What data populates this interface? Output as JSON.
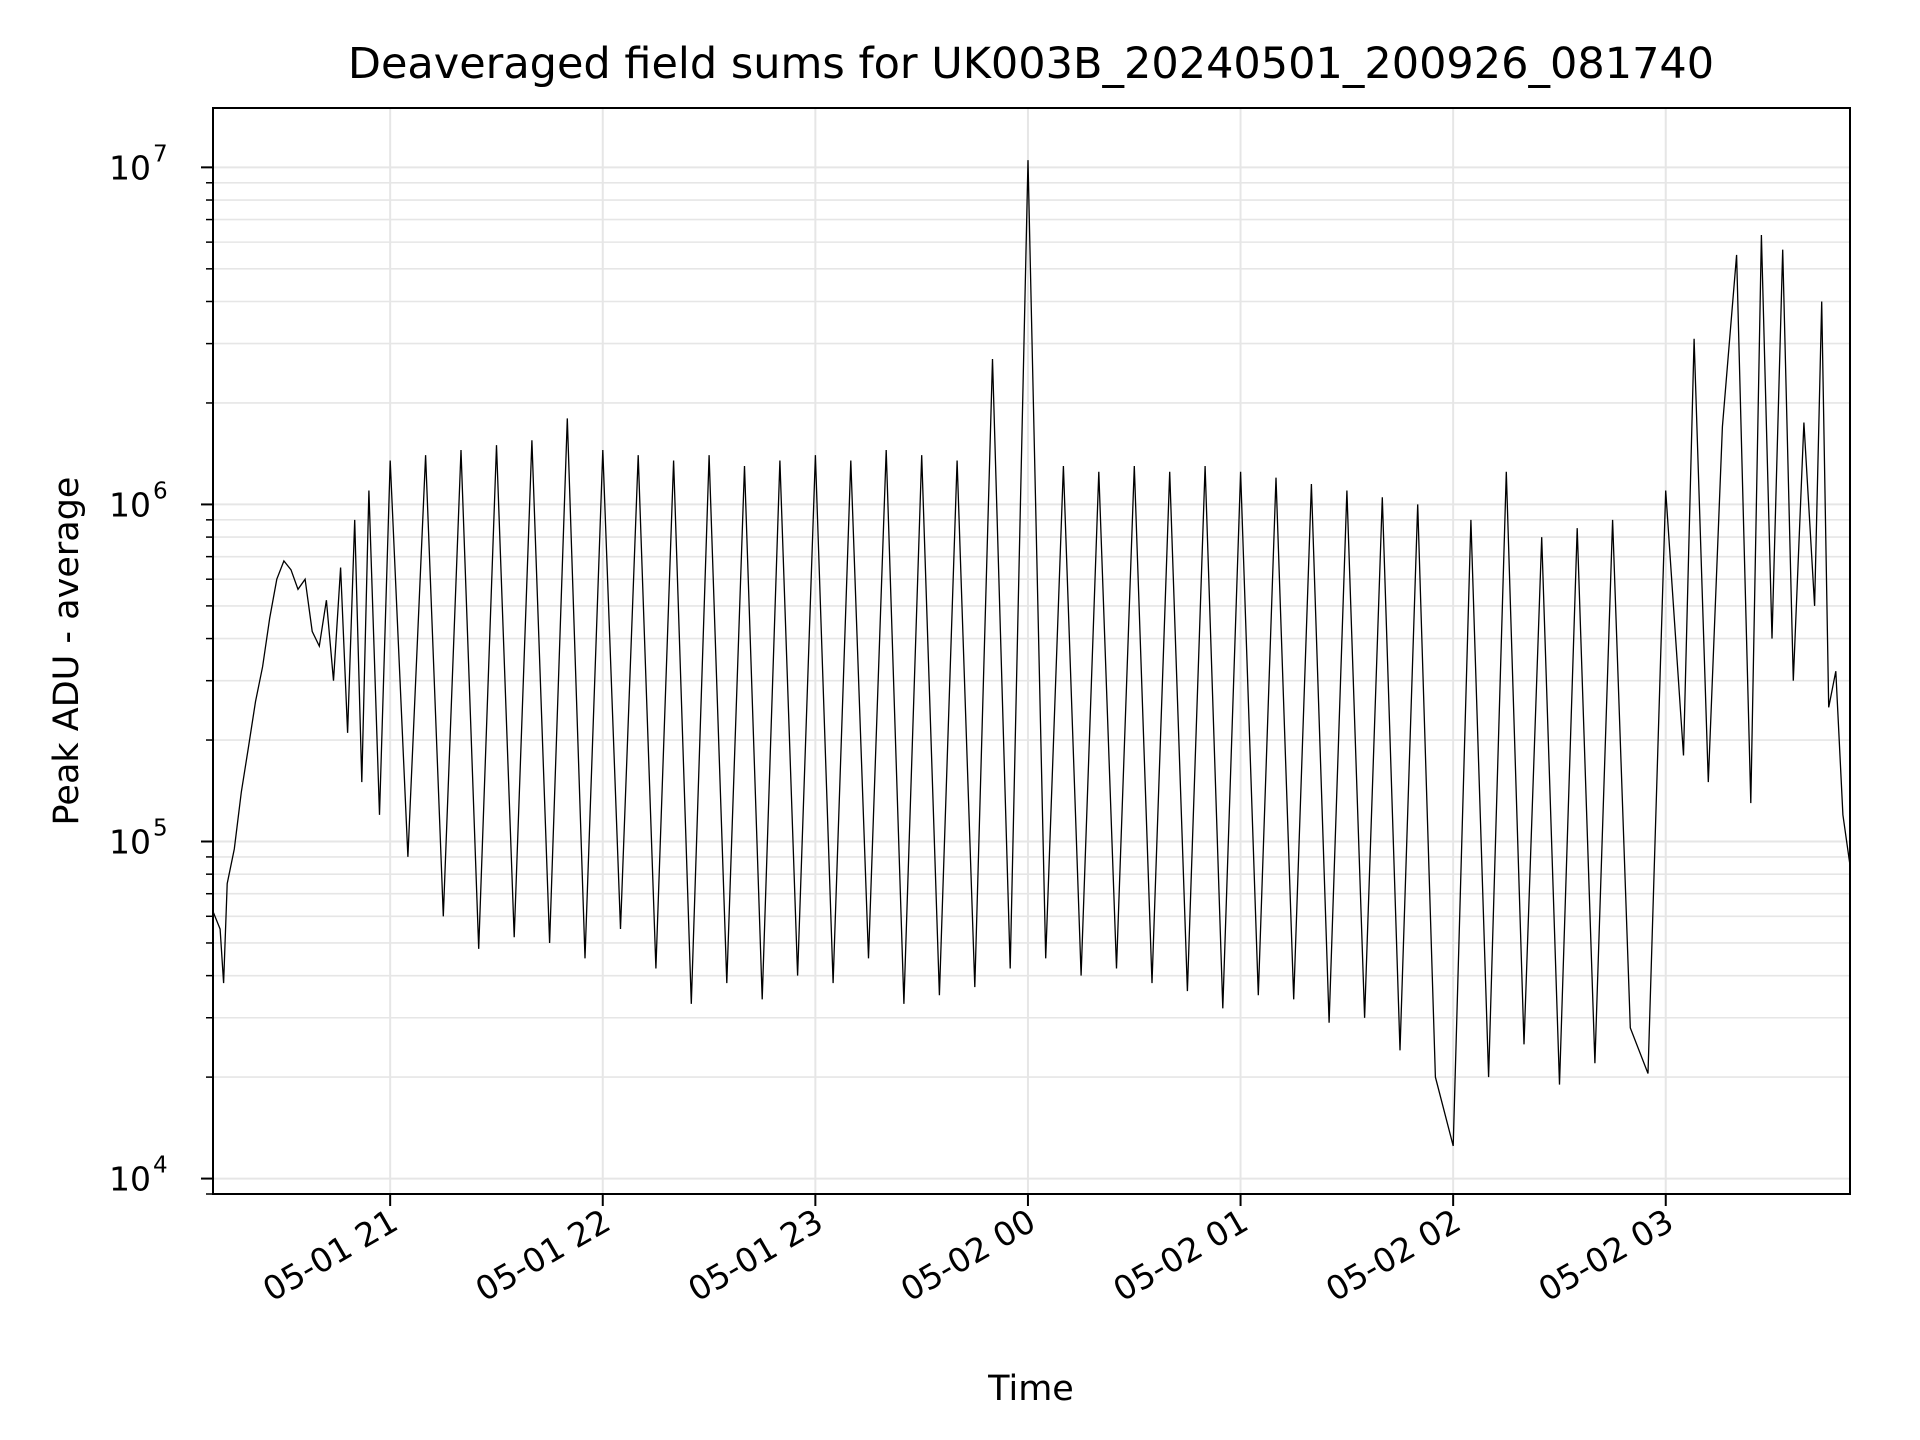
{
  "chart_data": {
    "type": "line",
    "title": "Deaveraged field sums for UK003B_20240501_200926_081740",
    "xlabel": "Time",
    "ylabel": "Peak ADU - average",
    "yscale": "log",
    "ylim": [
      9000,
      15000000
    ],
    "xlim": [
      "2024-05-01 20:10",
      "2024-05-02 03:52"
    ],
    "grid": true,
    "line_color": "#000000",
    "grid_color": "#e6e6e6",
    "x_ticks": [
      {
        "label": "05-01 21",
        "time": "2024-05-01 21:00"
      },
      {
        "label": "05-01 22",
        "time": "2024-05-01 22:00"
      },
      {
        "label": "05-01 23",
        "time": "2024-05-01 23:00"
      },
      {
        "label": "05-02 00",
        "time": "2024-05-02 00:00"
      },
      {
        "label": "05-02 01",
        "time": "2024-05-02 01:00"
      },
      {
        "label": "05-02 02",
        "time": "2024-05-02 02:00"
      },
      {
        "label": "05-02 03",
        "time": "2024-05-02 03:00"
      }
    ],
    "y_ticks": [
      {
        "base": "10",
        "exp": "4",
        "value": 10000
      },
      {
        "base": "10",
        "exp": "5",
        "value": 100000
      },
      {
        "base": "10",
        "exp": "6",
        "value": 1000000
      },
      {
        "base": "10",
        "exp": "7",
        "value": 10000000
      }
    ],
    "series": [
      {
        "points": [
          [
            "2024-05-01 20:10",
            62000
          ],
          [
            "2024-05-01 20:12",
            55000
          ],
          [
            "2024-05-01 20:13",
            38000
          ],
          [
            "2024-05-01 20:14",
            75000
          ],
          [
            "2024-05-01 20:16",
            95000
          ],
          [
            "2024-05-01 20:18",
            140000
          ],
          [
            "2024-05-01 20:20",
            190000
          ],
          [
            "2024-05-01 20:22",
            260000
          ],
          [
            "2024-05-01 20:24",
            330000
          ],
          [
            "2024-05-01 20:26",
            460000
          ],
          [
            "2024-05-01 20:28",
            600000
          ],
          [
            "2024-05-01 20:30",
            680000
          ],
          [
            "2024-05-01 20:32",
            640000
          ],
          [
            "2024-05-01 20:34",
            560000
          ],
          [
            "2024-05-01 20:36",
            600000
          ],
          [
            "2024-05-01 20:38",
            420000
          ],
          [
            "2024-05-01 20:40",
            380000
          ],
          [
            "2024-05-01 20:42",
            520000
          ],
          [
            "2024-05-01 20:44",
            300000
          ],
          [
            "2024-05-01 20:46",
            650000
          ],
          [
            "2024-05-01 20:48",
            210000
          ],
          [
            "2024-05-01 20:50",
            900000
          ],
          [
            "2024-05-01 20:52",
            150000
          ],
          [
            "2024-05-01 20:54",
            1100000
          ],
          [
            "2024-05-01 20:57",
            120000
          ],
          [
            "2024-05-01 21:00",
            1350000
          ],
          [
            "2024-05-01 21:05",
            90000
          ],
          [
            "2024-05-01 21:10",
            1400000
          ],
          [
            "2024-05-01 21:15",
            60000
          ],
          [
            "2024-05-01 21:20",
            1450000
          ],
          [
            "2024-05-01 21:25",
            48000
          ],
          [
            "2024-05-01 21:30",
            1500000
          ],
          [
            "2024-05-01 21:35",
            52000
          ],
          [
            "2024-05-01 21:40",
            1550000
          ],
          [
            "2024-05-01 21:45",
            50000
          ],
          [
            "2024-05-01 21:50",
            1800000
          ],
          [
            "2024-05-01 21:55",
            45000
          ],
          [
            "2024-05-01 22:00",
            1450000
          ],
          [
            "2024-05-01 22:05",
            55000
          ],
          [
            "2024-05-01 22:10",
            1400000
          ],
          [
            "2024-05-01 22:15",
            42000
          ],
          [
            "2024-05-01 22:20",
            1350000
          ],
          [
            "2024-05-01 22:25",
            33000
          ],
          [
            "2024-05-01 22:30",
            1400000
          ],
          [
            "2024-05-01 22:35",
            38000
          ],
          [
            "2024-05-01 22:40",
            1300000
          ],
          [
            "2024-05-01 22:45",
            34000
          ],
          [
            "2024-05-01 22:50",
            1350000
          ],
          [
            "2024-05-01 22:55",
            40000
          ],
          [
            "2024-05-01 23:00",
            1400000
          ],
          [
            "2024-05-01 23:05",
            38000
          ],
          [
            "2024-05-01 23:10",
            1350000
          ],
          [
            "2024-05-01 23:15",
            45000
          ],
          [
            "2024-05-01 23:20",
            1450000
          ],
          [
            "2024-05-01 23:25",
            33000
          ],
          [
            "2024-05-01 23:30",
            1400000
          ],
          [
            "2024-05-01 23:35",
            35000
          ],
          [
            "2024-05-01 23:40",
            1350000
          ],
          [
            "2024-05-01 23:45",
            37000
          ],
          [
            "2024-05-01 23:50",
            2700000
          ],
          [
            "2024-05-01 23:55",
            42000
          ],
          [
            "2024-05-02 00:00",
            10500000
          ],
          [
            "2024-05-02 00:05",
            45000
          ],
          [
            "2024-05-02 00:10",
            1300000
          ],
          [
            "2024-05-02 00:15",
            40000
          ],
          [
            "2024-05-02 00:20",
            1250000
          ],
          [
            "2024-05-02 00:25",
            42000
          ],
          [
            "2024-05-02 00:30",
            1300000
          ],
          [
            "2024-05-02 00:35",
            38000
          ],
          [
            "2024-05-02 00:40",
            1250000
          ],
          [
            "2024-05-02 00:45",
            36000
          ],
          [
            "2024-05-02 00:50",
            1300000
          ],
          [
            "2024-05-02 00:55",
            32000
          ],
          [
            "2024-05-02 01:00",
            1250000
          ],
          [
            "2024-05-02 01:05",
            35000
          ],
          [
            "2024-05-02 01:10",
            1200000
          ],
          [
            "2024-05-02 01:15",
            34000
          ],
          [
            "2024-05-02 01:20",
            1150000
          ],
          [
            "2024-05-02 01:25",
            29000
          ],
          [
            "2024-05-02 01:30",
            1100000
          ],
          [
            "2024-05-02 01:35",
            30000
          ],
          [
            "2024-05-02 01:40",
            1050000
          ],
          [
            "2024-05-02 01:45",
            24000
          ],
          [
            "2024-05-02 01:50",
            1000000
          ],
          [
            "2024-05-02 01:55",
            20000
          ],
          [
            "2024-05-02 02:00",
            12500
          ],
          [
            "2024-05-02 02:05",
            900000
          ],
          [
            "2024-05-02 02:10",
            20000
          ],
          [
            "2024-05-02 02:15",
            1250000
          ],
          [
            "2024-05-02 02:20",
            25000
          ],
          [
            "2024-05-02 02:25",
            800000
          ],
          [
            "2024-05-02 02:30",
            19000
          ],
          [
            "2024-05-02 02:35",
            850000
          ],
          [
            "2024-05-02 02:40",
            22000
          ],
          [
            "2024-05-02 02:45",
            900000
          ],
          [
            "2024-05-02 02:50",
            28000
          ],
          [
            "2024-05-02 02:55",
            20500
          ],
          [
            "2024-05-02 03:00",
            1100000
          ],
          [
            "2024-05-02 03:05",
            180000
          ],
          [
            "2024-05-02 03:08",
            3100000
          ],
          [
            "2024-05-02 03:12",
            150000
          ],
          [
            "2024-05-02 03:16",
            1700000
          ],
          [
            "2024-05-02 03:20",
            5500000
          ],
          [
            "2024-05-02 03:24",
            130000
          ],
          [
            "2024-05-02 03:27",
            6300000
          ],
          [
            "2024-05-02 03:30",
            400000
          ],
          [
            "2024-05-02 03:33",
            5700000
          ],
          [
            "2024-05-02 03:36",
            300000
          ],
          [
            "2024-05-02 03:39",
            1750000
          ],
          [
            "2024-05-02 03:42",
            500000
          ],
          [
            "2024-05-02 03:44",
            4000000
          ],
          [
            "2024-05-02 03:46",
            250000
          ],
          [
            "2024-05-02 03:48",
            320000
          ],
          [
            "2024-05-02 03:50",
            120000
          ],
          [
            "2024-05-02 03:52",
            85000
          ]
        ]
      }
    ]
  }
}
